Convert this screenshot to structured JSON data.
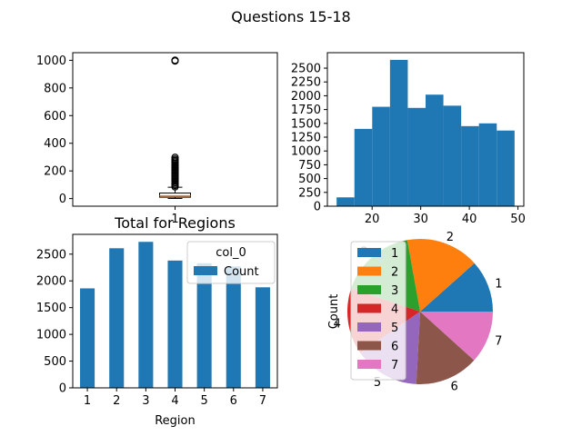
{
  "page": {
    "title": "Questions 15-18"
  },
  "chart_data": [
    {
      "type": "box",
      "title": "",
      "xlabel": "",
      "ylabel": "",
      "categories": [
        "1"
      ],
      "stats": {
        "whislo": 1,
        "q1": 10,
        "med": 20,
        "q3": 40,
        "whishi": 82
      },
      "outliers": [
        85,
        95,
        105,
        115,
        125,
        135,
        145,
        155,
        165,
        175,
        185,
        195,
        205,
        215,
        225,
        235,
        245,
        255,
        265,
        275,
        285,
        298,
        995,
        1000
      ],
      "ylim": [
        -55,
        1055
      ],
      "yticks": [
        0,
        200,
        400,
        600,
        800,
        1000
      ],
      "colors": {
        "box": "#000000",
        "median": "#ff7f0e"
      }
    },
    {
      "type": "histogram",
      "title": "",
      "bin_edges": [
        12.7,
        16.36,
        20.02,
        23.68,
        27.34,
        31.0,
        34.66,
        38.32,
        41.98,
        45.64,
        49.3
      ],
      "values": [
        160,
        1400,
        1800,
        2650,
        1780,
        2020,
        1820,
        1450,
        1500,
        1370
      ],
      "xlim": [
        10.8,
        51.2
      ],
      "ylim": [
        0,
        2780
      ],
      "xticks": [
        20,
        30,
        40,
        50
      ],
      "yticks": [
        0,
        250,
        500,
        750,
        1000,
        1250,
        1500,
        1750,
        2000,
        2250,
        2500
      ],
      "color": "#1f77b4"
    },
    {
      "type": "bar",
      "title": "Total for Regions",
      "xlabel": "Region",
      "ylabel": "",
      "categories": [
        "1",
        "2",
        "3",
        "4",
        "5",
        "6",
        "7"
      ],
      "series": [
        {
          "name": "Count",
          "values": [
            1860,
            2610,
            2730,
            2380,
            2330,
            2270,
            1880
          ],
          "color": "#1f77b4"
        }
      ],
      "ylim": [
        0,
        2870
      ],
      "yticks": [
        0,
        500,
        1000,
        1500,
        2000,
        2500
      ],
      "legend": {
        "title": "col_0",
        "placement": "upper right"
      }
    },
    {
      "type": "pie",
      "title": "",
      "ylabel": "Count",
      "labels": [
        "1",
        "2",
        "3",
        "4",
        "5",
        "6",
        "7"
      ],
      "values": [
        1860,
        2610,
        2730,
        2380,
        2330,
        2270,
        1880
      ],
      "colors": [
        "#1f77b4",
        "#ff7f0e",
        "#2ca02c",
        "#d62728",
        "#9467bd",
        "#8c564b",
        "#e377c2"
      ],
      "legend": {
        "placement": "upper left"
      }
    }
  ]
}
